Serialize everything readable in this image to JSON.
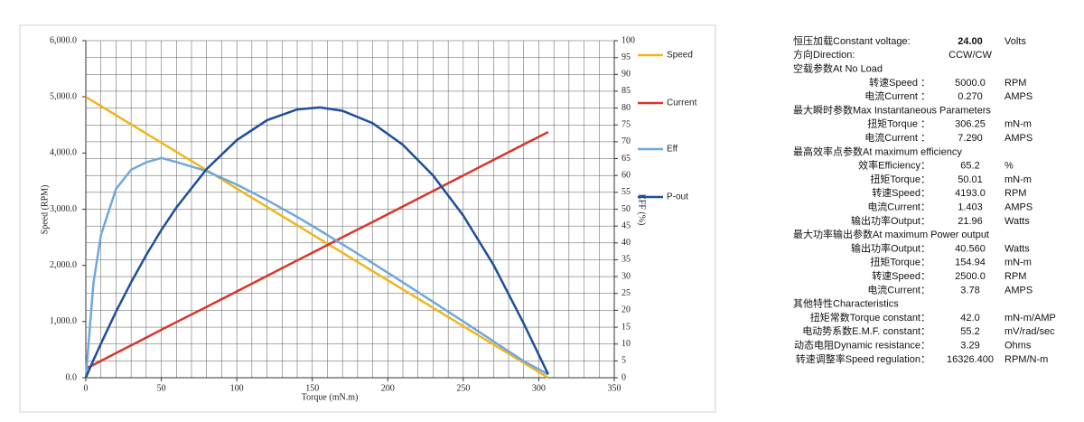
{
  "chart_data": {
    "type": "line",
    "xlabel": "Torque (mN.m)",
    "ylabel": "Speed (RPM)",
    "y2label": "EFF (%)",
    "x": [
      0,
      5,
      10,
      20,
      30,
      40,
      50,
      60,
      80,
      100,
      120,
      140,
      155,
      170,
      190,
      210,
      230,
      250,
      270,
      290,
      306.25
    ],
    "series": [
      {
        "name": "Speed",
        "color": "#f2b51c",
        "axis": "y",
        "values": [
          5000,
          4918,
          4837,
          4673,
          4510,
          4347,
          4184,
          4020,
          3694,
          3367,
          3041,
          2714,
          2469,
          2224,
          1898,
          1571,
          1245,
          918,
          592,
          265,
          0
        ]
      },
      {
        "name": "Current",
        "color": "#d9352a",
        "axis": "y2",
        "values": [
          2.7,
          3.8,
          5.0,
          7.3,
          9.6,
          11.9,
          14.2,
          16.5,
          21.0,
          25.6,
          30.2,
          34.8,
          38.2,
          41.7,
          46.2,
          50.8,
          55.4,
          60.0,
          64.6,
          69.2,
          72.9
        ]
      },
      {
        "name": "Eff",
        "color": "#6fa8dc",
        "axis": "y2",
        "values": [
          0,
          27.9,
          42.3,
          56.0,
          61.7,
          63.9,
          65.2,
          64.0,
          61.3,
          57.3,
          52.7,
          47.7,
          43.7,
          39.6,
          34.0,
          28.3,
          22.5,
          16.7,
          10.8,
          4.9,
          1
        ]
      },
      {
        "name": "P-out",
        "color": "#1f4e9c",
        "axis": "y2",
        "values": [
          0,
          5.2,
          10.1,
          19.6,
          28.3,
          36.4,
          43.8,
          50.5,
          61.9,
          70.5,
          76.4,
          79.6,
          80.2,
          79.2,
          75.5,
          69.1,
          60.0,
          48.1,
          33.5,
          16.1,
          1
        ]
      }
    ],
    "xlim": [
      0,
      350
    ],
    "xticks": [
      0,
      50,
      100,
      150,
      200,
      250,
      300,
      350
    ],
    "ylim": [
      0,
      6000
    ],
    "yticks": [
      {
        "value": 0,
        "label": "0.0"
      },
      {
        "value": 1000,
        "label": "1,000.0"
      },
      {
        "value": 2000,
        "label": "2,000.0"
      },
      {
        "value": 3000,
        "label": "3,000.0"
      },
      {
        "value": 4000,
        "label": "4,000.0"
      },
      {
        "value": 5000,
        "label": "5,000.0"
      },
      {
        "value": 6000,
        "label": "6,000.0"
      }
    ],
    "y2lim": [
      0,
      100
    ],
    "y2ticks": [
      0,
      5,
      10,
      15,
      20,
      25,
      30,
      35,
      40,
      45,
      50,
      55,
      60,
      65,
      70,
      75,
      80,
      85,
      90,
      95,
      100
    ],
    "grid": true,
    "legend": "right"
  },
  "specs": {
    "rows": [
      {
        "label": "恒压加载Constant voltage:",
        "value": "24.00",
        "unit": "Volts"
      },
      {
        "label": "方向Direction:",
        "value": "CCW/CW"
      },
      {
        "label": "空载参数At No Load"
      },
      {
        "label": "转速Speed ：",
        "value": "5000.0",
        "unit": "RPM"
      },
      {
        "label": "电流Current ：",
        "value": "0.270",
        "unit": "AMPS"
      },
      {
        "label": "最大瞬时参数Max Instantaneous Parameters"
      },
      {
        "label": "扭矩Torque ：",
        "value": "306.25",
        "unit": "mN-m"
      },
      {
        "label": "电流Current ：",
        "value": "7.290",
        "unit": "AMPS"
      },
      {
        "label": "最高效率点参数At maximum efficiency"
      },
      {
        "label": "效率Efficiency：",
        "value": "65.2",
        "unit": "%"
      },
      {
        "label": "扭矩Torque：",
        "value": "50.01",
        "unit": "mN-m"
      },
      {
        "label": "转速Speed：",
        "value": "4193.0",
        "unit": "RPM"
      },
      {
        "label": "电流Current：",
        "value": "1.403",
        "unit": "AMPS"
      },
      {
        "label": "输出功率Output：",
        "value": "21.96",
        "unit": "Watts"
      },
      {
        "label": "最大功率输出参数At maximum Power output"
      },
      {
        "label": "输出功率Output：",
        "value": "40.560",
        "unit": "Watts"
      },
      {
        "label": "扭矩Torque：",
        "value": "154.94",
        "unit": "mN-m"
      },
      {
        "label": "转速Speed：",
        "value": "2500.0",
        "unit": "RPM"
      },
      {
        "label": "电流Current：",
        "value": "3.78",
        "unit": "AMPS"
      },
      {
        "label": "其他特性Characteristics"
      },
      {
        "label": "扭矩常数Torque constant：",
        "value": "42.0",
        "unit": "mN-m/AMP"
      },
      {
        "label": "电动势系数E.M.F. constant：",
        "value": "55.2",
        "unit": "mV/rad/sec"
      },
      {
        "label": "动态电阻Dynamic resistance：",
        "value": "3.29",
        "unit": "Ohms"
      },
      {
        "label": "转速调整率Speed regulation：",
        "value": "16326.400",
        "unit": "RPM/N-m"
      }
    ]
  }
}
